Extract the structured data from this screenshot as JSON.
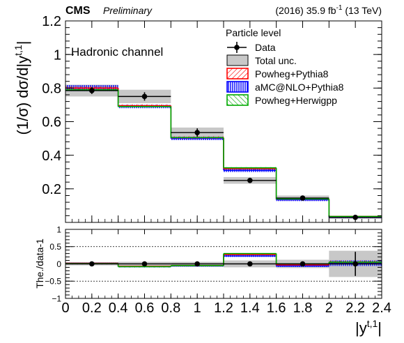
{
  "header": {
    "experiment": "CMS",
    "status": "Preliminary",
    "lumi_prefix": "(2016) 35.9 fb",
    "lumi_exp": "-1",
    "lumi_suffix": " (13 TeV)"
  },
  "chart_data": [
    {
      "type": "line",
      "panel": "main",
      "annotation": "Hadronic channel",
      "ylabel": "(1/σ) dσ/d|y",
      "ylabel_sup": "t,1",
      "ylabel_close": "|",
      "ylim": [
        0,
        1.2
      ],
      "yticks": [
        {
          "v": 0.2,
          "label": "0.2"
        },
        {
          "v": 0.4,
          "label": "0.4"
        },
        {
          "v": 0.6,
          "label": "0.6"
        },
        {
          "v": 0.8,
          "label": "0.8"
        },
        {
          "v": 1.0,
          "label": "1"
        },
        {
          "v": 1.2,
          "label": "1.2"
        }
      ],
      "xlim": [
        0,
        2.4
      ],
      "bin_edges": [
        0,
        0.4,
        0.8,
        1.2,
        1.6,
        2.0,
        2.4
      ],
      "legend": {
        "title": "Particle level",
        "position": "top-right",
        "entries": [
          {
            "key": "data",
            "label": "Data"
          },
          {
            "key": "unc",
            "label": "Total unc."
          },
          {
            "key": "powheg_pythia8",
            "label": "Powheg+Pythia8"
          },
          {
            "key": "amcatnlo",
            "label": "aMC@NLO+Pythia8"
          },
          {
            "key": "powheg_herwig",
            "label": "Powheg+Herwigpp"
          }
        ]
      },
      "series": [
        {
          "key": "data",
          "name": "Data",
          "x": [
            0.2,
            0.6,
            1.0,
            1.4,
            1.8,
            2.2
          ],
          "values": [
            0.785,
            0.75,
            0.535,
            0.25,
            0.145,
            0.03
          ],
          "errors": [
            0.02,
            0.025,
            0.025,
            0.015,
            0.01,
            0.01
          ]
        },
        {
          "key": "unc",
          "name": "Total unc.",
          "values": [
            0.785,
            0.75,
            0.535,
            0.25,
            0.145,
            0.03
          ],
          "band": [
            0.035,
            0.04,
            0.03,
            0.02,
            0.015,
            0.01
          ]
        },
        {
          "key": "powheg_pythia8",
          "name": "Powheg+Pythia8",
          "values": [
            0.8,
            0.695,
            0.505,
            0.32,
            0.14,
            0.035
          ],
          "half_width": [
            0.01,
            0.008,
            0.008,
            0.006,
            0.005,
            0.003
          ]
        },
        {
          "key": "amcatnlo",
          "name": "aMC@NLO+Pythia8",
          "values": [
            0.8,
            0.69,
            0.5,
            0.31,
            0.135,
            0.03
          ],
          "half_width": [
            0.018,
            0.01,
            0.01,
            0.01,
            0.008,
            0.004
          ]
        },
        {
          "key": "powheg_herwig",
          "name": "Powheg+Herwigpp",
          "values": [
            0.79,
            0.69,
            0.505,
            0.325,
            0.14,
            0.035
          ],
          "half_width": [
            0.004,
            0.004,
            0.004,
            0.004,
            0.003,
            0.002
          ]
        }
      ],
      "colors": {
        "data": "#000000",
        "unc": "#c8c8c8",
        "powheg_pythia8": "#ff0000",
        "amcatnlo": "#0000ff",
        "powheg_herwig": "#00aa00"
      }
    },
    {
      "type": "line",
      "panel": "ratio",
      "ylabel": "The./data-1",
      "ylim": [
        -1,
        1
      ],
      "yticks": [
        {
          "v": -1,
          "label": "−1"
        },
        {
          "v": -0.5,
          "label": "−0.5"
        },
        {
          "v": 0,
          "label": "0"
        },
        {
          "v": 0.5,
          "label": "0.5"
        },
        {
          "v": 1,
          "label": "1"
        }
      ],
      "grid_y": [
        -0.5,
        0,
        0.5
      ],
      "xlabel": "|y",
      "xlabel_sup": "t,1",
      "xlabel_close": "|",
      "xticks": [
        {
          "v": 0,
          "label": "0"
        },
        {
          "v": 0.2,
          "label": "0.2"
        },
        {
          "v": 0.4,
          "label": "0.4"
        },
        {
          "v": 0.6,
          "label": "0.6"
        },
        {
          "v": 0.8,
          "label": "0.8"
        },
        {
          "v": 1.0,
          "label": "1"
        },
        {
          "v": 1.2,
          "label": "1.2"
        },
        {
          "v": 1.4,
          "label": "1.4"
        },
        {
          "v": 1.6,
          "label": "1.6"
        },
        {
          "v": 1.8,
          "label": "1.8"
        },
        {
          "v": 2.0,
          "label": "2"
        },
        {
          "v": 2.2,
          "label": "2.2"
        },
        {
          "v": 2.4,
          "label": "2.4"
        }
      ],
      "series": [
        {
          "key": "data",
          "x": [
            0.2,
            0.6,
            1.0,
            1.4,
            1.8,
            2.2
          ],
          "values": [
            0,
            0,
            0,
            0,
            0,
            0
          ],
          "errors": [
            0.025,
            0.03,
            0.04,
            0.06,
            0.07,
            0.35
          ]
        },
        {
          "key": "unc",
          "values": [
            0,
            0,
            0,
            0,
            0,
            0
          ],
          "band": [
            0.045,
            0.06,
            0.06,
            0.1,
            0.12,
            0.38
          ]
        },
        {
          "key": "powheg_pythia8",
          "values": [
            0.02,
            -0.07,
            -0.05,
            0.27,
            -0.03,
            0.05
          ],
          "half_width": [
            0.01,
            0.01,
            0.01,
            0.02,
            0.02,
            0.05
          ]
        },
        {
          "key": "amcatnlo",
          "values": [
            0.02,
            -0.08,
            -0.06,
            0.23,
            -0.06,
            0.02
          ],
          "half_width": [
            0.02,
            0.02,
            0.02,
            0.03,
            0.03,
            0.08
          ]
        },
        {
          "key": "powheg_herwig",
          "values": [
            0.01,
            -0.08,
            -0.05,
            0.3,
            0.0,
            0.05
          ],
          "half_width": [
            0.005,
            0.005,
            0.005,
            0.01,
            0.01,
            0.03
          ]
        }
      ]
    }
  ]
}
